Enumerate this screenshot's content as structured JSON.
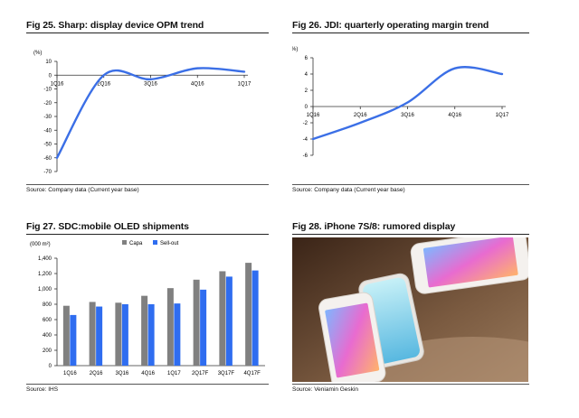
{
  "figures": [
    {
      "title": "Fig 25. Sharp: display device OPM trend",
      "source": "Source: Company data (Current year base)",
      "chart_data": {
        "type": "line",
        "unit": "(%)",
        "x": [
          "1Q16",
          "2Q16",
          "3Q16",
          "4Q16",
          "1Q17"
        ],
        "y_ticks": [
          10,
          0,
          -10,
          -20,
          -30,
          -40,
          -50,
          -60,
          -70
        ],
        "ylim": [
          -70,
          10
        ],
        "series": [
          {
            "values": [
              -60,
              0,
              -3,
              5,
              2.5
            ]
          }
        ],
        "color": "#3b6fe6"
      }
    },
    {
      "title": "Fig 26. JDI: quarterly operating margin trend",
      "source": "Source: Company data (Current year base)",
      "chart_data": {
        "type": "line",
        "unit": "(%)",
        "x": [
          "1Q16",
          "2Q16",
          "3Q16",
          "4Q16",
          "1Q17"
        ],
        "y_ticks": [
          6,
          4,
          2,
          0,
          -2,
          -4,
          -6
        ],
        "ylim": [
          -6,
          6
        ],
        "series": [
          {
            "values": [
              -4,
              -2,
              0.5,
              4.7,
              4
            ]
          }
        ],
        "color": "#3b6fe6"
      }
    },
    {
      "title": "Fig 27. SDC:mobile OLED shipments",
      "source": "Source: IHS",
      "chart_data": {
        "type": "bar",
        "unit": "(000 m²)",
        "categories": [
          "1Q16",
          "2Q16",
          "3Q16",
          "4Q16",
          "1Q17",
          "2Q17F",
          "3Q17F",
          "4Q17F"
        ],
        "y_ticks": [
          "1,400",
          "1,200",
          "1,000",
          "800",
          "600",
          "400",
          "200",
          "0"
        ],
        "ylim": [
          0,
          1400
        ],
        "series": [
          {
            "name": "Capa",
            "color": "#808080",
            "values": [
              780,
              830,
              820,
              910,
              1010,
              1120,
              1230,
              1340
            ]
          },
          {
            "name": "Sell-out",
            "color": "#2f6df0",
            "values": [
              660,
              770,
              800,
              800,
              810,
              990,
              1160,
              1240
            ]
          }
        ]
      }
    },
    {
      "title": "Fig 28. iPhone 7S/8: rumored display",
      "source": "Source: Veniamin Geskin"
    }
  ]
}
